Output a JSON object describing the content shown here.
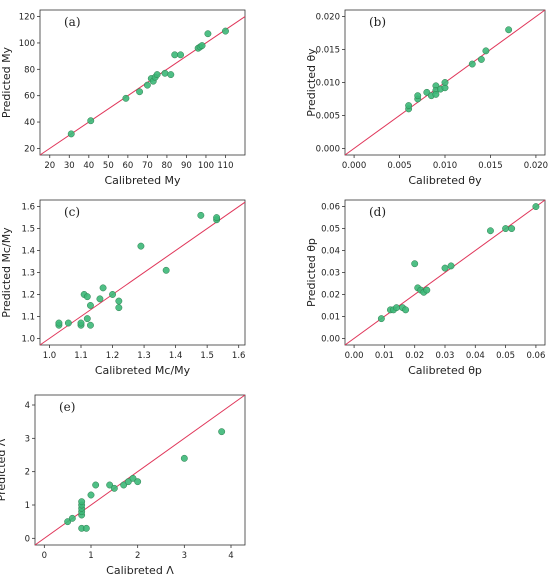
{
  "chart_data": [
    {
      "type": "scatter",
      "panel_label": "(a)",
      "xlabel": "Calibreted My",
      "ylabel": "Predicted My",
      "xlim": [
        15,
        120
      ],
      "ylim": [
        15,
        125
      ],
      "xticks": [
        20,
        30,
        40,
        50,
        60,
        70,
        80,
        90,
        100,
        110
      ],
      "yticks": [
        20,
        40,
        60,
        80,
        100,
        120
      ],
      "xtick_labels": [
        "20",
        "30",
        "40",
        "50",
        "60",
        "70",
        "80",
        "90",
        "100",
        "110"
      ],
      "ytick_labels": [
        "20",
        "40",
        "60",
        "80",
        "100",
        "120"
      ],
      "reference_line": "y = x",
      "points": [
        [
          31,
          31
        ],
        [
          41,
          41
        ],
        [
          59,
          58
        ],
        [
          66,
          63
        ],
        [
          70,
          68
        ],
        [
          72,
          73
        ],
        [
          73,
          71
        ],
        [
          74,
          74
        ],
        [
          75,
          76
        ],
        [
          79,
          77
        ],
        [
          82,
          76
        ],
        [
          84,
          91
        ],
        [
          87,
          91
        ],
        [
          96,
          96
        ],
        [
          97,
          97
        ],
        [
          98,
          98
        ],
        [
          101,
          107
        ],
        [
          110,
          109
        ]
      ]
    },
    {
      "type": "scatter",
      "panel_label": "(b)",
      "xlabel": "Calibreted θy",
      "ylabel": "Predicted θy",
      "xlim": [
        -0.001,
        0.021
      ],
      "ylim": [
        -0.001,
        0.021
      ],
      "xticks": [
        0,
        0.005,
        0.01,
        0.015,
        0.02
      ],
      "yticks": [
        0,
        0.005,
        0.01,
        0.015,
        0.02
      ],
      "xtick_labels": [
        "0.000",
        "0.005",
        "0.010",
        "0.015",
        "0.020"
      ],
      "ytick_labels": [
        "0.000",
        "0.005",
        "0.010",
        "0.015",
        "0.020"
      ],
      "reference_line": "y = x",
      "points": [
        [
          0.006,
          0.006
        ],
        [
          0.006,
          0.0065
        ],
        [
          0.007,
          0.0075
        ],
        [
          0.007,
          0.008
        ],
        [
          0.008,
          0.0085
        ],
        [
          0.0085,
          0.008
        ],
        [
          0.009,
          0.0095
        ],
        [
          0.009,
          0.0088
        ],
        [
          0.009,
          0.0082
        ],
        [
          0.0095,
          0.009
        ],
        [
          0.01,
          0.0092
        ],
        [
          0.01,
          0.01
        ],
        [
          0.013,
          0.0128
        ],
        [
          0.014,
          0.0135
        ],
        [
          0.0145,
          0.0148
        ],
        [
          0.017,
          0.018
        ]
      ]
    },
    {
      "type": "scatter",
      "panel_label": "(c)",
      "xlabel": "Calibreted Mc/My",
      "ylabel": "Predicted Mc/My",
      "xlim": [
        0.97,
        1.62
      ],
      "ylim": [
        0.97,
        1.63
      ],
      "xticks": [
        1.0,
        1.1,
        1.2,
        1.3,
        1.4,
        1.5,
        1.6
      ],
      "yticks": [
        1.0,
        1.1,
        1.2,
        1.3,
        1.4,
        1.5,
        1.6
      ],
      "xtick_labels": [
        "1.0",
        "1.1",
        "1.2",
        "1.3",
        "1.4",
        "1.5",
        "1.6"
      ],
      "ytick_labels": [
        "1.0",
        "1.1",
        "1.2",
        "1.3",
        "1.4",
        "1.5",
        "1.6"
      ],
      "reference_line": "y = x",
      "points": [
        [
          1.03,
          1.06
        ],
        [
          1.03,
          1.07
        ],
        [
          1.06,
          1.07
        ],
        [
          1.1,
          1.06
        ],
        [
          1.1,
          1.07
        ],
        [
          1.11,
          1.2
        ],
        [
          1.12,
          1.19
        ],
        [
          1.12,
          1.09
        ],
        [
          1.13,
          1.06
        ],
        [
          1.13,
          1.15
        ],
        [
          1.16,
          1.18
        ],
        [
          1.17,
          1.23
        ],
        [
          1.2,
          1.2
        ],
        [
          1.22,
          1.14
        ],
        [
          1.22,
          1.17
        ],
        [
          1.29,
          1.42
        ],
        [
          1.37,
          1.31
        ],
        [
          1.48,
          1.56
        ],
        [
          1.53,
          1.54
        ],
        [
          1.53,
          1.55
        ]
      ]
    },
    {
      "type": "scatter",
      "panel_label": "(d)",
      "xlabel": "Calibreted θp",
      "ylabel": "Predicted θp",
      "xlim": [
        -0.003,
        0.063
      ],
      "ylim": [
        -0.003,
        0.063
      ],
      "xticks": [
        0,
        0.01,
        0.02,
        0.03,
        0.04,
        0.05,
        0.06
      ],
      "yticks": [
        0,
        0.01,
        0.02,
        0.03,
        0.04,
        0.05,
        0.06
      ],
      "xtick_labels": [
        "0.00",
        "0.01",
        "0.02",
        "0.03",
        "0.04",
        "0.05",
        "0.06"
      ],
      "ytick_labels": [
        "0.00",
        "0.01",
        "0.02",
        "0.03",
        "0.04",
        "0.05",
        "0.06"
      ],
      "reference_line": "y = x",
      "points": [
        [
          0.009,
          0.009
        ],
        [
          0.012,
          0.013
        ],
        [
          0.013,
          0.013
        ],
        [
          0.014,
          0.014
        ],
        [
          0.016,
          0.014
        ],
        [
          0.017,
          0.013
        ],
        [
          0.02,
          0.034
        ],
        [
          0.021,
          0.023
        ],
        [
          0.022,
          0.022
        ],
        [
          0.023,
          0.021
        ],
        [
          0.024,
          0.022
        ],
        [
          0.03,
          0.032
        ],
        [
          0.032,
          0.033
        ],
        [
          0.045,
          0.049
        ],
        [
          0.05,
          0.05
        ],
        [
          0.052,
          0.05
        ],
        [
          0.06,
          0.06
        ]
      ]
    },
    {
      "type": "scatter",
      "panel_label": "(e)",
      "xlabel": "Calibreted Λ",
      "ylabel": "Predicted Λ",
      "xlim": [
        -0.2,
        4.3
      ],
      "ylim": [
        -0.2,
        4.3
      ],
      "xticks": [
        0,
        1,
        2,
        3,
        4
      ],
      "yticks": [
        0,
        1,
        2,
        3,
        4
      ],
      "xtick_labels": [
        "0",
        "1",
        "2",
        "3",
        "4"
      ],
      "ytick_labels": [
        "0",
        "1",
        "2",
        "3",
        "4"
      ],
      "reference_line": "y = x",
      "points": [
        [
          0.5,
          0.5
        ],
        [
          0.6,
          0.6
        ],
        [
          0.8,
          0.3
        ],
        [
          0.8,
          0.7
        ],
        [
          0.8,
          0.8
        ],
        [
          0.8,
          0.9
        ],
        [
          0.8,
          1.0
        ],
        [
          0.8,
          1.1
        ],
        [
          0.9,
          0.3
        ],
        [
          1.0,
          1.3
        ],
        [
          1.1,
          1.6
        ],
        [
          1.4,
          1.6
        ],
        [
          1.5,
          1.5
        ],
        [
          1.7,
          1.6
        ],
        [
          1.8,
          1.7
        ],
        [
          1.9,
          1.8
        ],
        [
          2.0,
          1.7
        ],
        [
          3.0,
          2.4
        ],
        [
          3.8,
          3.2
        ]
      ]
    }
  ]
}
